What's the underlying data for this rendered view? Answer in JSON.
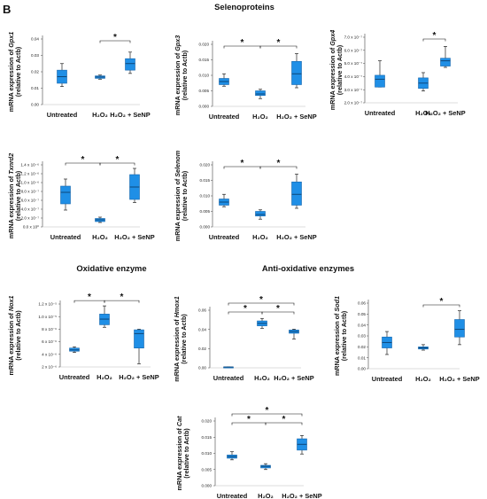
{
  "figure": {
    "panel_label": "B",
    "sections": [
      {
        "id": "selenoproteins",
        "title": "Selenoproteins"
      },
      {
        "id": "oxidative",
        "title": "Oxidative enzyme"
      },
      {
        "id": "antioxidative",
        "title": "Anti-oxidative enzymes"
      }
    ],
    "group_labels": [
      "Untreated",
      "H₂O₂",
      "H₂O₂ + SeNP"
    ],
    "colors": {
      "box_fill": "#1f8fe6",
      "box_stroke": "#1566ad",
      "whisker": "#222222"
    }
  },
  "chart_data": [
    {
      "id": "gpx1",
      "type": "box",
      "section": "selenoproteins",
      "ylabel_prefix": "mRNA expression of ",
      "gene": "Gpx1",
      "ylabel_suffix": "(relative to Actb)",
      "categories": [
        "Untreated",
        "H₂O₂",
        "H₂O₂ + SeNP"
      ],
      "ylim": [
        0,
        0.04
      ],
      "yticks": [
        "0.00",
        "0.01",
        "0.02",
        "0.03",
        "0.04"
      ],
      "boxes": [
        {
          "min": 0.011,
          "q1": 0.013,
          "median": 0.017,
          "q3": 0.021,
          "max": 0.025
        },
        {
          "min": 0.0155,
          "q1": 0.016,
          "median": 0.0168,
          "q3": 0.0175,
          "max": 0.018
        },
        {
          "min": 0.019,
          "q1": 0.021,
          "median": 0.025,
          "q3": 0.028,
          "max": 0.032
        }
      ],
      "significance": [
        {
          "from": 1,
          "to": 2,
          "label": "*"
        }
      ]
    },
    {
      "id": "gpx3",
      "type": "box",
      "section": "selenoproteins",
      "ylabel_prefix": "mRNA expression of ",
      "gene": "Gpx3",
      "ylabel_suffix": "(relative to Actb)",
      "categories": [
        "Untreated",
        "H₂O₂",
        "H₂O₂ + SeNP"
      ],
      "ylim": [
        0,
        0.02
      ],
      "yticks": [
        "0.000",
        "0.005",
        "0.010",
        "0.015",
        "0.020"
      ],
      "boxes": [
        {
          "min": 0.0065,
          "q1": 0.007,
          "median": 0.008,
          "q3": 0.009,
          "max": 0.0105
        },
        {
          "min": 0.0025,
          "q1": 0.0035,
          "median": 0.004,
          "q3": 0.005,
          "max": 0.0055
        },
        {
          "min": 0.006,
          "q1": 0.007,
          "median": 0.0105,
          "q3": 0.0145,
          "max": 0.017
        }
      ],
      "significance": [
        {
          "from": 0,
          "to": 1,
          "label": "*"
        },
        {
          "from": 1,
          "to": 2,
          "label": "*"
        }
      ]
    },
    {
      "id": "gpx4",
      "type": "box",
      "section": "selenoproteins",
      "ylabel_prefix": "mRNA expression of ",
      "gene": "Gpx4",
      "ylabel_suffix": "(relative to Actb)",
      "categories": [
        "Untreated",
        "H₂O₂",
        "H₂O₂ + SeNP"
      ],
      "ylim": [
        2e-07,
        7e-07
      ],
      "yticks": [
        "2.0 x 10⁻⁷",
        "3.0 x 10⁻⁷",
        "4.0 x 10⁻⁷",
        "5.0 x 10⁻⁷",
        "6.0 x 10⁻⁷",
        "7.0 x 10⁻⁷"
      ],
      "boxes": [
        {
          "min": 3.2e-07,
          "q1": 3.2e-07,
          "median": 3.8e-07,
          "q3": 4.1e-07,
          "max": 5.2e-07
        },
        {
          "min": 2.9e-07,
          "q1": 3.1e-07,
          "median": 3.5e-07,
          "q3": 3.9e-07,
          "max": 4.3e-07
        },
        {
          "min": 4.7e-07,
          "q1": 4.8e-07,
          "median": 5.2e-07,
          "q3": 5.4e-07,
          "max": 6.3e-07
        }
      ],
      "significance": [
        {
          "from": 1,
          "to": 2,
          "label": "*"
        }
      ]
    },
    {
      "id": "txnrd2",
      "type": "box",
      "section": "selenoproteins",
      "ylabel_prefix": "mRNA expression of ",
      "gene": "Txnrd2",
      "ylabel_suffix": "(relative to Actb)",
      "categories": [
        "Untreated",
        "H₂O₂",
        "H₂O₂ + SeNP"
      ],
      "ylim": [
        0,
        1.4e-06
      ],
      "yticks": [
        "0.0 x 10⁰",
        "2.0 x 10⁻⁷",
        "4.0 x 10⁻⁷",
        "6.0 x 10⁻⁷",
        "8.0 x 10⁻⁷",
        "1.0 x 10⁻⁶",
        "1.2 x 10⁻⁶",
        "1.4 x 10⁻⁶"
      ],
      "boxes": [
        {
          "min": 3.8e-07,
          "q1": 5.2e-07,
          "median": 7.8e-07,
          "q3": 9.2e-07,
          "max": 1.08e-06
        },
        {
          "min": 1e-07,
          "q1": 1.2e-07,
          "median": 1.6e-07,
          "q3": 1.9e-07,
          "max": 2.2e-07
        },
        {
          "min": 5.5e-07,
          "q1": 6.2e-07,
          "median": 9e-07,
          "q3": 1.18e-06,
          "max": 1.32e-06
        }
      ],
      "significance": [
        {
          "from": 0,
          "to": 1,
          "label": "*"
        },
        {
          "from": 1,
          "to": 2,
          "label": "*"
        }
      ]
    },
    {
      "id": "selenom",
      "type": "box",
      "section": "selenoproteins",
      "ylabel_prefix": "mRNA expression of ",
      "gene": "Selenom",
      "ylabel_suffix": "(relative to Actb)",
      "categories": [
        "Untreated",
        "H₂O₂",
        "H₂O₂ + SeNP"
      ],
      "ylim": [
        0,
        0.02
      ],
      "yticks": [
        "0.000",
        "0.005",
        "0.010",
        "0.015",
        "0.020"
      ],
      "boxes": [
        {
          "min": 0.0065,
          "q1": 0.007,
          "median": 0.008,
          "q3": 0.009,
          "max": 0.0105
        },
        {
          "min": 0.0025,
          "q1": 0.0035,
          "median": 0.004,
          "q3": 0.005,
          "max": 0.0055
        },
        {
          "min": 0.006,
          "q1": 0.007,
          "median": 0.0105,
          "q3": 0.0145,
          "max": 0.017
        }
      ],
      "significance": [
        {
          "from": 0,
          "to": 1,
          "label": "*"
        },
        {
          "from": 1,
          "to": 2,
          "label": "*"
        }
      ]
    },
    {
      "id": "nox1",
      "type": "box",
      "section": "oxidative",
      "ylabel_prefix": "mRNA expression of ",
      "gene": "Nox1",
      "ylabel_suffix": "(relative to Actb)",
      "categories": [
        "Untreated",
        "H₂O₂",
        "H₂O₂ + SeNP"
      ],
      "ylim": [
        2e-06,
        1.2e-05
      ],
      "yticks": [
        "2 x 10⁻⁶",
        "4 x 10⁻⁶",
        "6 x 10⁻⁶",
        "8 x 10⁻⁶",
        "1.0 x 10⁻⁵",
        "1.2 x 10⁻⁵"
      ],
      "boxes": [
        {
          "min": 4.3e-06,
          "q1": 4.5e-06,
          "median": 4.7e-06,
          "q3": 5e-06,
          "max": 5.2e-06
        },
        {
          "min": 8.3e-06,
          "q1": 8.7e-06,
          "median": 9.6e-06,
          "q3": 1.04e-05,
          "max": 1.17e-05
        },
        {
          "min": 2.5e-06,
          "q1": 5e-06,
          "median": 7.3e-06,
          "q3": 7.9e-06,
          "max": 8e-06
        }
      ],
      "significance": [
        {
          "from": 0,
          "to": 1,
          "label": "*"
        },
        {
          "from": 1,
          "to": 2,
          "label": "*"
        }
      ]
    },
    {
      "id": "hmox1",
      "type": "box",
      "section": "antioxidative",
      "ylabel_prefix": "mRNA expression of ",
      "gene": "Hmox1",
      "ylabel_suffix": "(relative to Actb)",
      "categories": [
        "Untreated",
        "H₂O₂",
        "H₂O₂ + SeNP"
      ],
      "ylim": [
        0,
        0.07
      ],
      "yticks": [
        "0.00",
        "0.02",
        "0.04",
        "0.06"
      ],
      "boxes": [
        {
          "min": 0.0008,
          "q1": 0.0009,
          "median": 0.001,
          "q3": 0.0011,
          "max": 0.0012
        },
        {
          "min": 0.048,
          "q1": 0.051,
          "median": 0.054,
          "q3": 0.057,
          "max": 0.06
        },
        {
          "min": 0.035,
          "q1": 0.042,
          "median": 0.044,
          "q3": 0.046,
          "max": 0.047
        }
      ],
      "significance": [
        {
          "from": 0,
          "to": 1,
          "label": "*"
        },
        {
          "from": 1,
          "to": 2,
          "label": "*"
        },
        {
          "from": 0,
          "to": 2,
          "label": "*"
        }
      ]
    },
    {
      "id": "sod1",
      "type": "box",
      "section": "antioxidative",
      "ylabel_prefix": "mRNA expression of ",
      "gene": "Sod1",
      "ylabel_suffix": "(relative to Actb)",
      "categories": [
        "Untreated",
        "H₂O₂",
        "H₂O₂ + SeNP"
      ],
      "ylim": [
        0,
        0.06
      ],
      "yticks": [
        "0.00",
        "0.01",
        "0.02",
        "0.03",
        "0.04",
        "0.05",
        "0.06"
      ],
      "boxes": [
        {
          "min": 0.013,
          "q1": 0.019,
          "median": 0.024,
          "q3": 0.029,
          "max": 0.034
        },
        {
          "min": 0.017,
          "q1": 0.018,
          "median": 0.019,
          "q3": 0.02,
          "max": 0.022
        },
        {
          "min": 0.022,
          "q1": 0.029,
          "median": 0.036,
          "q3": 0.045,
          "max": 0.053
        }
      ],
      "significance": [
        {
          "from": 1,
          "to": 2,
          "label": "*"
        }
      ]
    },
    {
      "id": "cat",
      "type": "box",
      "section": "antioxidative",
      "ylabel_prefix": "mRNA expression of ",
      "gene": "Cat",
      "ylabel_suffix": "(relative to Actb)",
      "categories": [
        "Untreated",
        "H₂O₂",
        "H₂O₂ + SeNP"
      ],
      "ylim": [
        0,
        0.02
      ],
      "yticks": [
        "0.000",
        "0.005",
        "0.010",
        "0.015",
        "0.020"
      ],
      "boxes": [
        {
          "min": 0.008,
          "q1": 0.0085,
          "median": 0.009,
          "q3": 0.0095,
          "max": 0.0105
        },
        {
          "min": 0.005,
          "q1": 0.0055,
          "median": 0.006,
          "q3": 0.0063,
          "max": 0.0068
        },
        {
          "min": 0.0098,
          "q1": 0.011,
          "median": 0.0128,
          "q3": 0.0145,
          "max": 0.0155
        }
      ],
      "significance": [
        {
          "from": 0,
          "to": 1,
          "label": "*"
        },
        {
          "from": 1,
          "to": 2,
          "label": "*"
        },
        {
          "from": 0,
          "to": 2,
          "label": "*"
        }
      ]
    }
  ]
}
